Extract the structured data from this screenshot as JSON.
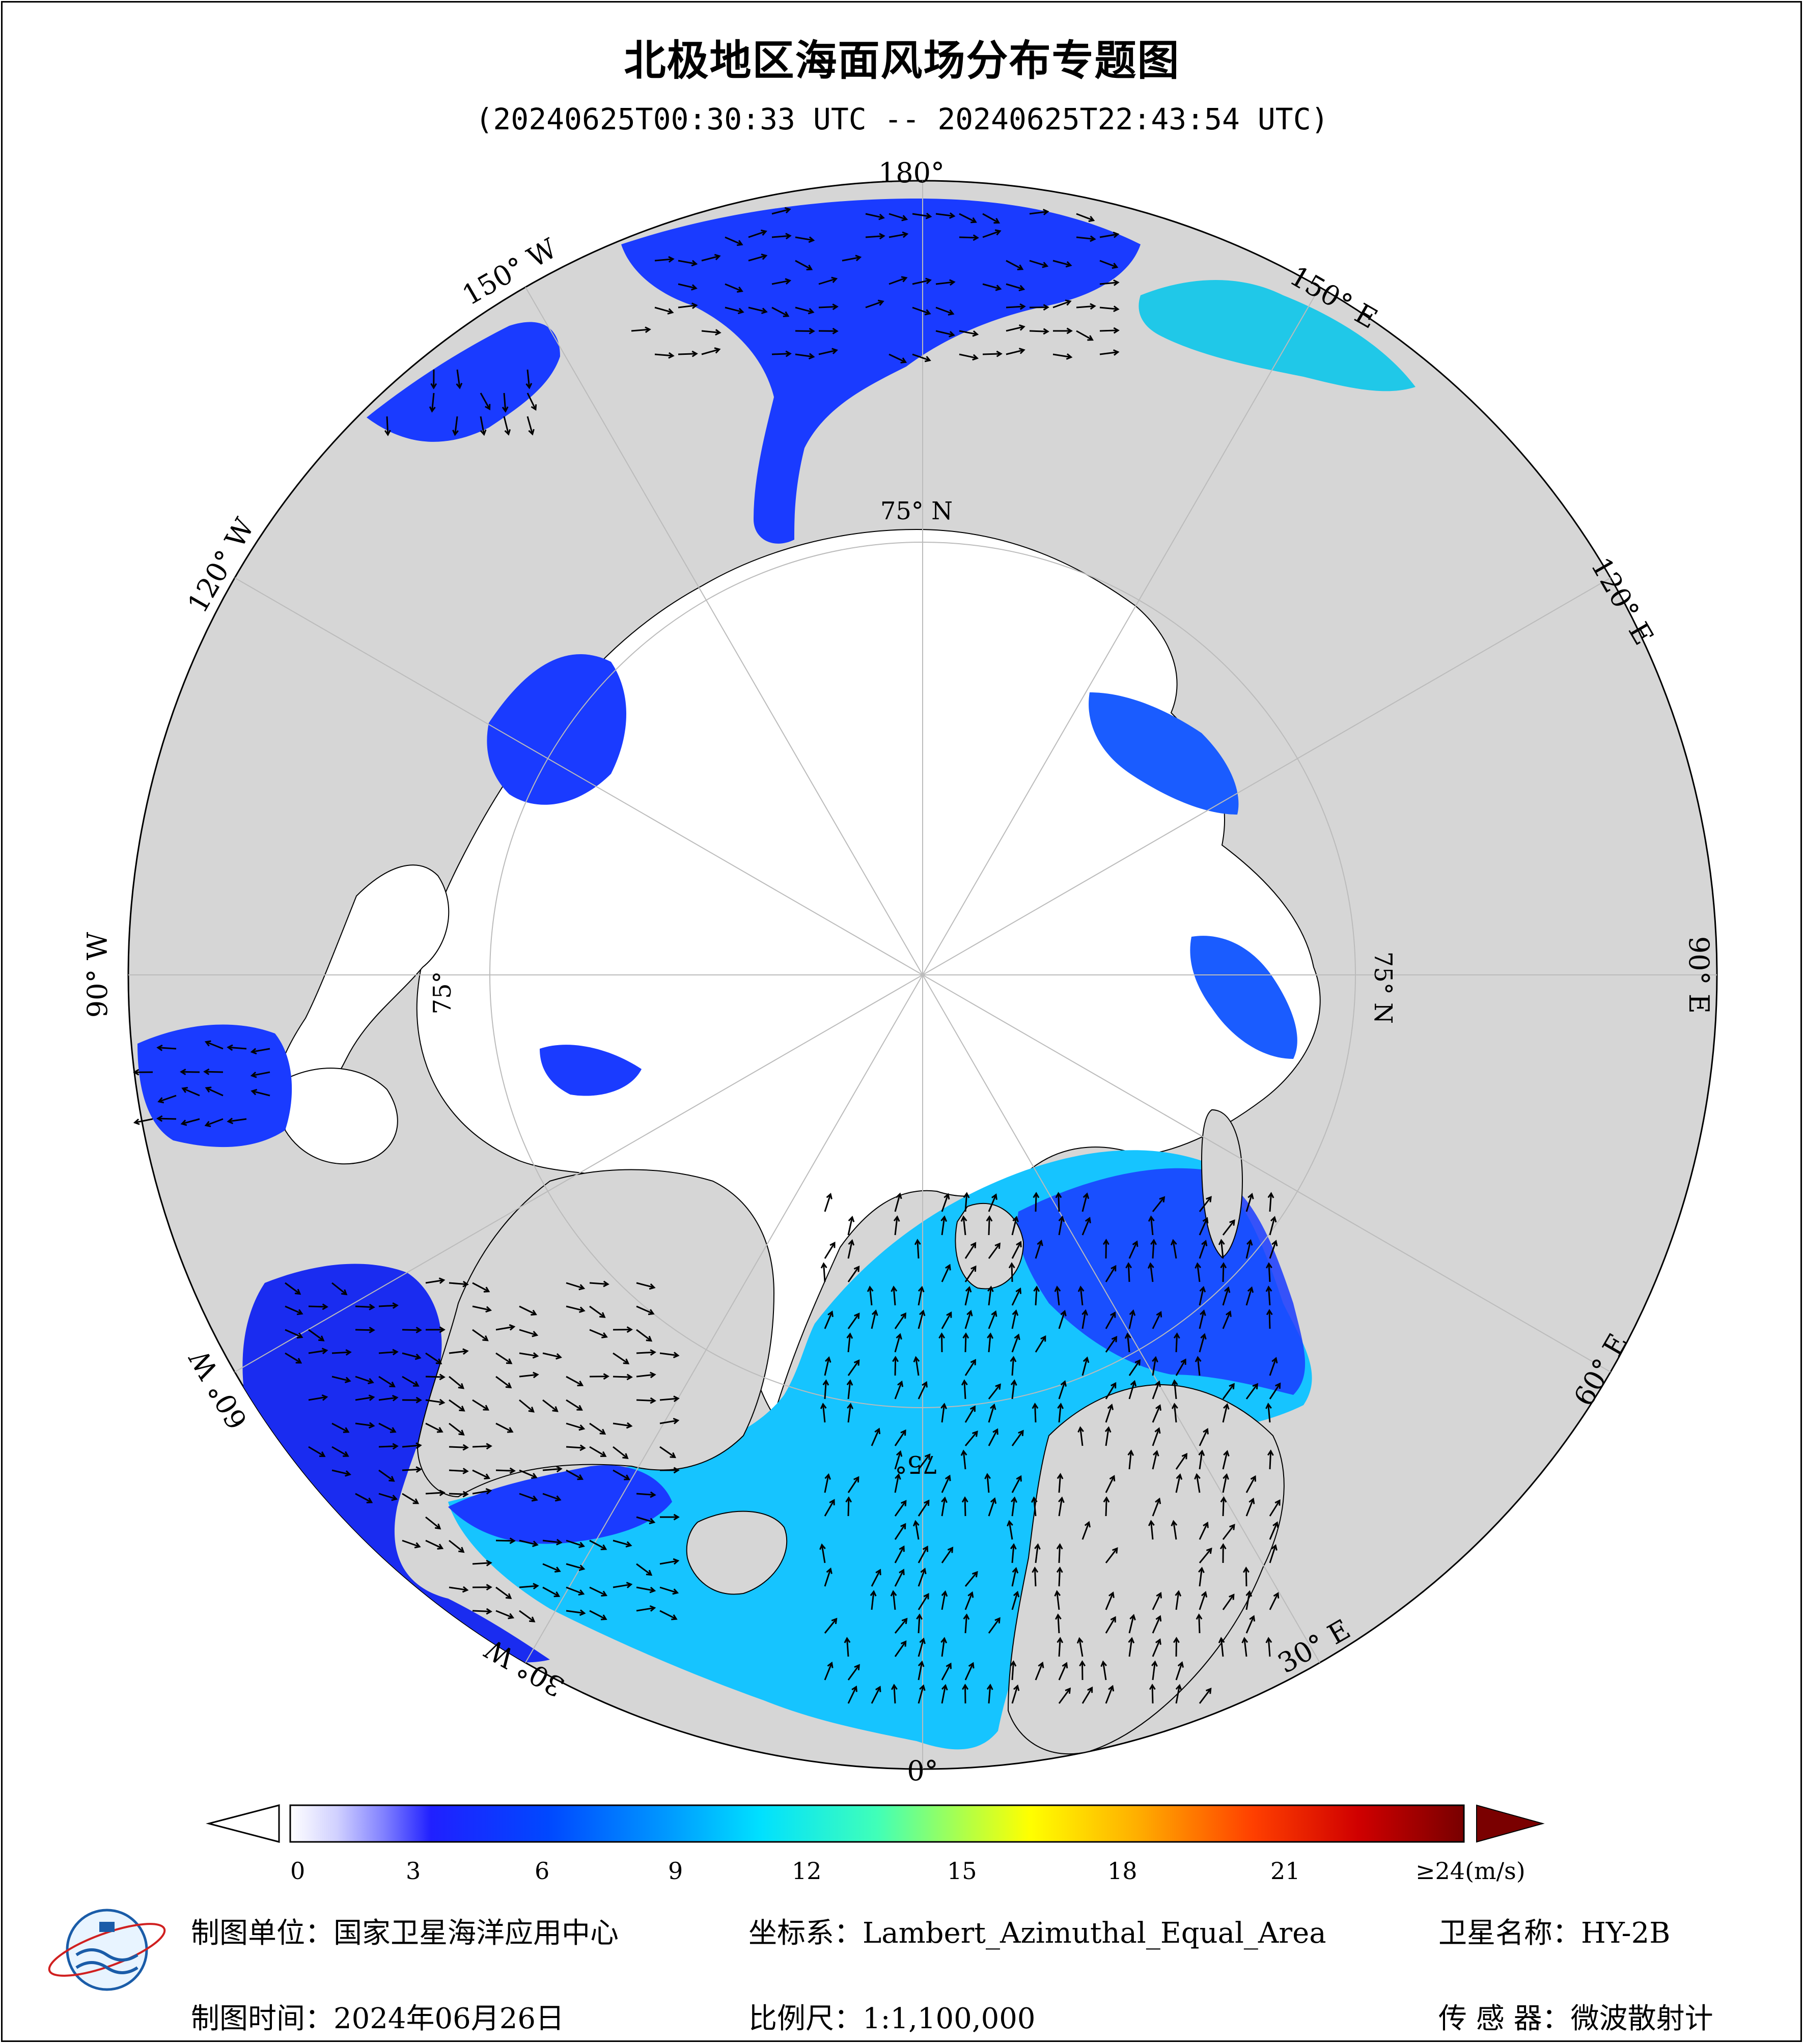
{
  "title": "北极地区海面风场分布专题图",
  "subtitle": "(20240625T00:30:33 UTC -- 20240625T22:43:54 UTC)",
  "map": {
    "longitude_labels": {
      "lon_180": "180°",
      "lon_150E": "150° E",
      "lon_120E": "120° E",
      "lon_90E": "90° E",
      "lon_60E": "60° E",
      "lon_30E": "30° E",
      "lon_0": "0°",
      "lon_30W": "30° W",
      "lon_60W": "60° W",
      "lon_90W": "90° W",
      "lon_120W": "120° W",
      "lon_150W": "150° W"
    },
    "latitude_labels": {
      "lat_75_top": "75° N",
      "lat_75_right": "75° N",
      "lat_75_left": "75°",
      "lat_75_bottom": "75°"
    },
    "colors": {
      "land": "#d6d6d6",
      "ice_or_nodata": "#ffffff",
      "ocean_wind_low": "#1a3bff",
      "ocean_wind_mid": "#00d8ff",
      "ocean_wind_high": "#f5f500"
    }
  },
  "colorbar": {
    "ticks": [
      "0",
      "3",
      "6",
      "9",
      "12",
      "15",
      "18",
      "21",
      "≥24(m/s)"
    ],
    "min": 0,
    "max": 24,
    "unit": "m/s",
    "stops": [
      "#ffffff",
      "#c8c8ff",
      "#6a6aff",
      "#1a1aff",
      "#0050ff",
      "#00a0ff",
      "#00e8ff",
      "#40ffb0",
      "#c0ff40",
      "#ffff00",
      "#ffc000",
      "#ff7000",
      "#ff1000",
      "#c00000",
      "#800000"
    ]
  },
  "footer": {
    "unit_label": "制图单位：国家卫星海洋应用中心",
    "coord_label": "坐标系：Lambert_Azimuthal_Equal_Area",
    "satellite_label": "卫星名称：HY-2B",
    "time_label": "制图时间：2024年06月26日",
    "scale_label": "比例尺：1:1,100,000",
    "sensor_label": "传 感 器：微波散射计"
  }
}
